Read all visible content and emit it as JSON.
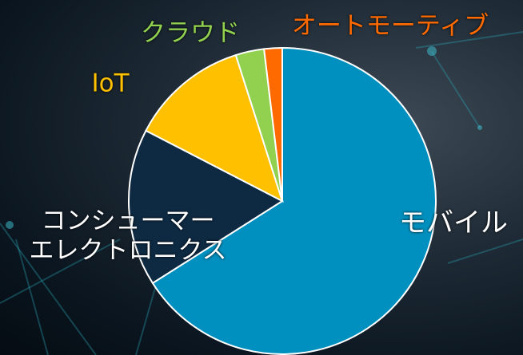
{
  "chart_data": {
    "type": "pie",
    "categories": [
      "モバイル",
      "コンシューマー\nエレクトロニクス",
      "IoT",
      "クラウド",
      "オートモーティブ"
    ],
    "values": [
      66,
      16.6,
      12.5,
      3,
      1.9
    ],
    "colors": [
      "#0090bf",
      "#0e2a43",
      "#ffc000",
      "#92d050",
      "#ff6a00"
    ],
    "label_colors": [
      "#ffffff",
      "#ffffff",
      "#ffc000",
      "#92d050",
      "#ff6a00"
    ]
  }
}
